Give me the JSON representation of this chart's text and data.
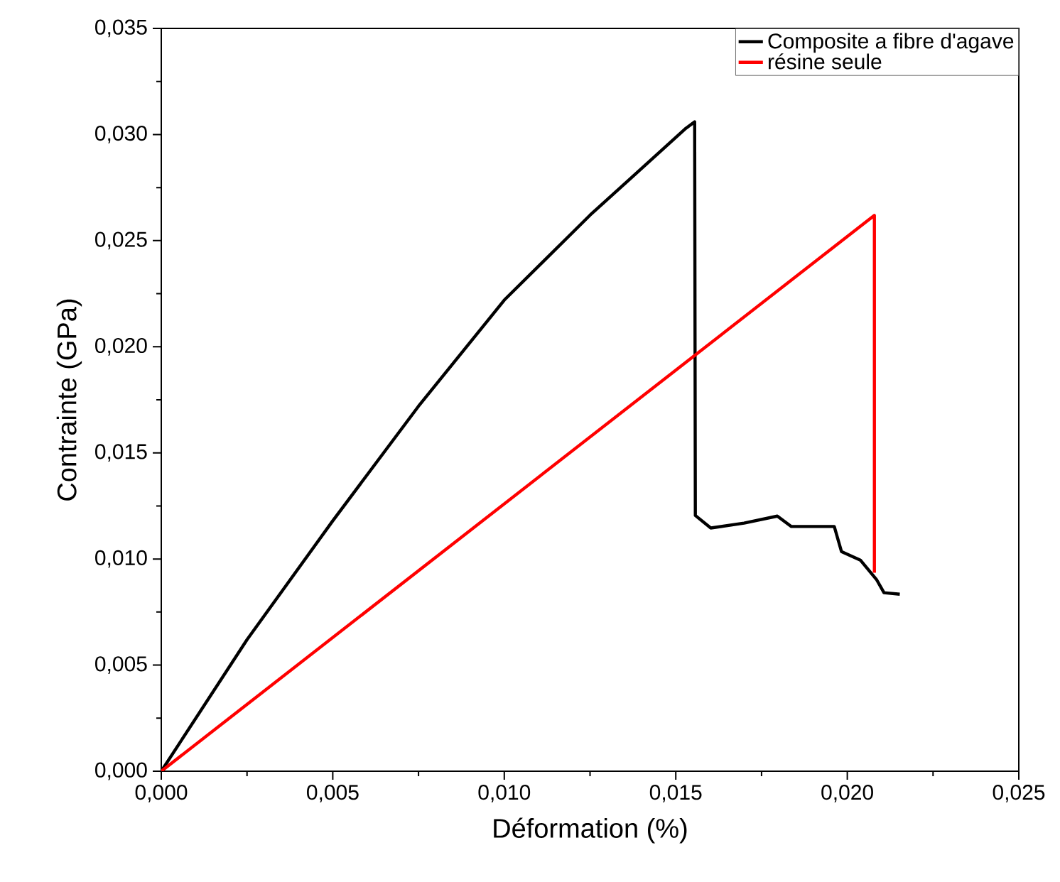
{
  "chart_data": {
    "type": "line",
    "xlabel": "Déformation (%)",
    "ylabel": "Contrainte (GPa)",
    "xlim": [
      0,
      0.025
    ],
    "ylim": [
      0,
      0.035
    ],
    "xticks": [
      {
        "value": 0,
        "label": "0,000"
      },
      {
        "value": 0.005,
        "label": "0,005"
      },
      {
        "value": 0.01,
        "label": "0,010"
      },
      {
        "value": 0.015,
        "label": "0,015"
      },
      {
        "value": 0.02,
        "label": "0,020"
      },
      {
        "value": 0.025,
        "label": "0,025"
      }
    ],
    "yticks": [
      {
        "value": 0,
        "label": "0,000"
      },
      {
        "value": 0.005,
        "label": "0,005"
      },
      {
        "value": 0.01,
        "label": "0,010"
      },
      {
        "value": 0.015,
        "label": "0,015"
      },
      {
        "value": 0.02,
        "label": "0,020"
      },
      {
        "value": 0.025,
        "label": "0,025"
      },
      {
        "value": 0.03,
        "label": "0,030"
      },
      {
        "value": 0.035,
        "label": "0,035"
      }
    ],
    "legend": "top right",
    "grid": false,
    "marker": "none",
    "line_style": "solid",
    "series": [
      {
        "name": "Composite a fibre d'agave",
        "color": "#000000",
        "x": [
          0,
          0.0025,
          0.005,
          0.0075,
          0.01,
          0.0125,
          0.0153,
          0.01555,
          0.01557,
          0.01602,
          0.01699,
          0.01796,
          0.01837,
          0.01962,
          0.01983,
          0.02038,
          0.02086,
          0.02107,
          0.02153
        ],
        "values": [
          0,
          0.0062,
          0.0118,
          0.0172,
          0.0222,
          0.0262,
          0.0303,
          0.0306,
          0.01205,
          0.01146,
          0.01169,
          0.01202,
          0.01153,
          0.01153,
          0.01035,
          0.00995,
          0.00901,
          0.00841,
          0.00834
        ]
      },
      {
        "name": "résine seule",
        "color": "#ff0000",
        "x": [
          0,
          0.02079,
          0.02079
        ],
        "values": [
          0,
          0.02619,
          0.00935
        ]
      }
    ]
  }
}
